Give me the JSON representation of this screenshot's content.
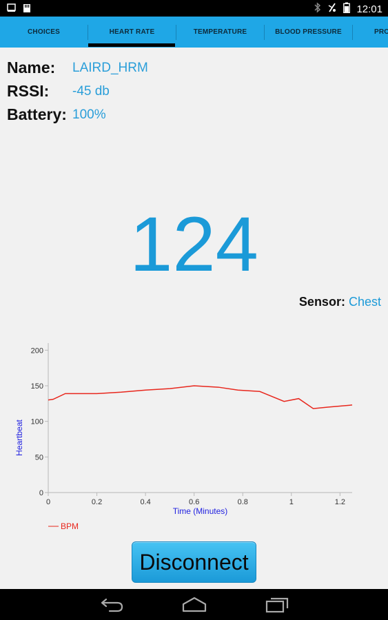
{
  "status_bar": {
    "time": "12:01",
    "left_icons": [
      "screenshot-icon",
      "sd-card-icon"
    ],
    "right_icons": [
      "bluetooth-icon",
      "no-signal-icon",
      "battery-icon"
    ]
  },
  "tabs": [
    {
      "label": "CHOICES",
      "selected": false
    },
    {
      "label": "HEART RATE",
      "selected": true
    },
    {
      "label": "TEMPERATURE",
      "selected": false
    },
    {
      "label": "BLOOD PRESSURE",
      "selected": false
    },
    {
      "label": "PRO",
      "selected": false
    }
  ],
  "device": {
    "name_label": "Name:",
    "name_value": "LAIRD_HRM",
    "rssi_label": "RSSI:",
    "rssi_value": "-45 db",
    "battery_label": "Battery:",
    "battery_value": "100%"
  },
  "heart_rate": {
    "value": "124",
    "sensor_label": "Sensor:",
    "sensor_value": "Chest"
  },
  "chart_data": {
    "type": "line",
    "xlabel": "Time (Minutes)",
    "ylabel": "Heartbeat",
    "xlim": [
      0,
      1.25
    ],
    "ylim": [
      0,
      210
    ],
    "x_ticks": [
      "0",
      "0.2",
      "0.4",
      "0.6",
      "0.8",
      "1",
      "1.2"
    ],
    "y_ticks": [
      "0",
      "50",
      "100",
      "150",
      "200"
    ],
    "grid": false,
    "legend": "bottom-left",
    "series": [
      {
        "name": "BPM",
        "color": "#e8261c",
        "x": [
          0,
          0.02,
          0.07,
          0.1,
          0.2,
          0.3,
          0.4,
          0.5,
          0.6,
          0.7,
          0.78,
          0.87,
          0.97,
          1.03,
          1.09,
          1.15,
          1.25
        ],
        "y": [
          130,
          131,
          139,
          139,
          139,
          141,
          144,
          146,
          150,
          148,
          144,
          142,
          128,
          132,
          118,
          120,
          123
        ]
      }
    ]
  },
  "actions": {
    "disconnect_label": "Disconnect"
  },
  "nav_bar": [
    "back-icon",
    "home-icon",
    "recent-apps-icon"
  ],
  "colors": {
    "tab_bar": "#1fa7e6",
    "accent_text": "#1b9ad8",
    "series_line": "#e8261c",
    "axis_label": "#2020e0"
  }
}
